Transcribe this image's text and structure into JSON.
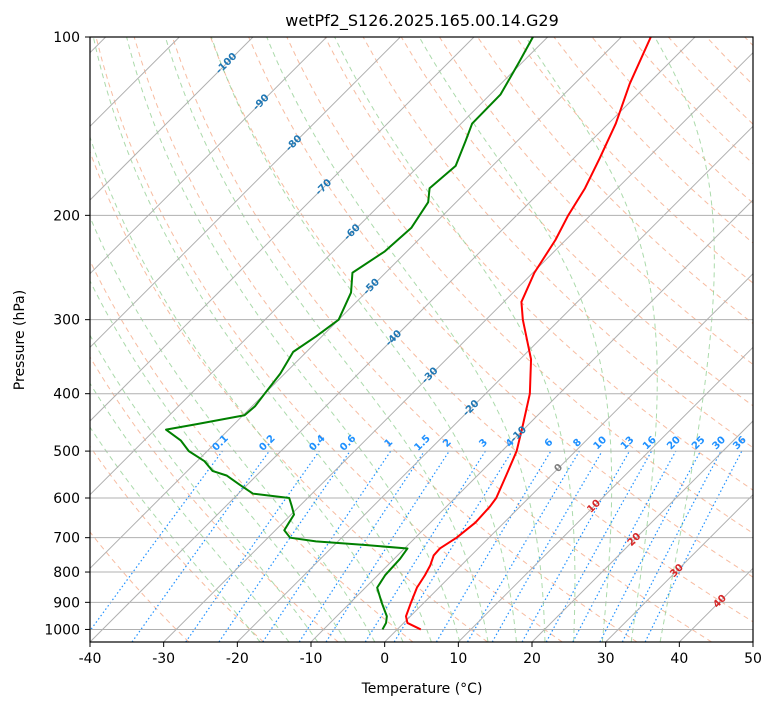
{
  "chart_data": {
    "type": "skew-t",
    "title": "wetPf2_S126.2025.165.00.14.G29",
    "xlabel": "Temperature (°C)",
    "ylabel": "Pressure (hPa)",
    "xlim": [
      -40,
      50
    ],
    "ylim": [
      1050,
      100
    ],
    "y_scale": "log",
    "grid": true,
    "x_ticks": [
      "-40",
      "-30",
      "-20",
      "-10",
      "0",
      "10",
      "20",
      "30",
      "40",
      "50"
    ],
    "x_tick_values": [
      -40,
      -30,
      -20,
      -10,
      0,
      10,
      20,
      30,
      40,
      50
    ],
    "y_ticks": [
      "100",
      "200",
      "300",
      "400",
      "500",
      "600",
      "700",
      "800",
      "900",
      "1000"
    ],
    "y_tick_values": [
      100,
      200,
      300,
      400,
      500,
      600,
      700,
      800,
      900,
      1000
    ],
    "series": [
      {
        "role": "temperature",
        "color": "#ff0000",
        "points": [
          [
            1000,
            3.2
          ],
          [
            975,
            0.5
          ],
          [
            950,
            -0.6
          ],
          [
            900,
            -1.8
          ],
          [
            850,
            -3.0
          ],
          [
            810,
            -3.6
          ],
          [
            780,
            -4.2
          ],
          [
            750,
            -5.1
          ],
          [
            730,
            -5.2
          ],
          [
            700,
            -4.4
          ],
          [
            660,
            -3.9
          ],
          [
            620,
            -4.1
          ],
          [
            600,
            -4.4
          ],
          [
            550,
            -6.1
          ],
          [
            500,
            -8.0
          ],
          [
            450,
            -10.8
          ],
          [
            400,
            -14.0
          ],
          [
            350,
            -18.5
          ],
          [
            300,
            -25.0
          ],
          [
            280,
            -27.6
          ],
          [
            250,
            -29.8
          ],
          [
            220,
            -31.4
          ],
          [
            200,
            -33.0
          ],
          [
            180,
            -34.4
          ],
          [
            160,
            -36.5
          ],
          [
            140,
            -39.0
          ],
          [
            120,
            -42.5
          ],
          [
            100,
            -46.0
          ]
        ]
      },
      {
        "role": "dewpoint",
        "color": "#008000",
        "points": [
          [
            1000,
            -2.0
          ],
          [
            975,
            -2.4
          ],
          [
            950,
            -3.2
          ],
          [
            900,
            -5.8
          ],
          [
            850,
            -8.4
          ],
          [
            810,
            -9.0
          ],
          [
            760,
            -9.2
          ],
          [
            730,
            -9.6
          ],
          [
            720,
            -16.0
          ],
          [
            710,
            -23.0
          ],
          [
            700,
            -27.0
          ],
          [
            680,
            -28.8
          ],
          [
            660,
            -29.2
          ],
          [
            640,
            -29.6
          ],
          [
            620,
            -31.0
          ],
          [
            600,
            -32.5
          ],
          [
            590,
            -38.0
          ],
          [
            570,
            -41.0
          ],
          [
            550,
            -44.0
          ],
          [
            540,
            -46.6
          ],
          [
            520,
            -49.0
          ],
          [
            500,
            -52.5
          ],
          [
            480,
            -55.0
          ],
          [
            460,
            -58.5
          ],
          [
            450,
            -55.0
          ],
          [
            435,
            -49.8
          ],
          [
            420,
            -49.6
          ],
          [
            400,
            -50.0
          ],
          [
            370,
            -50.6
          ],
          [
            340,
            -51.8
          ],
          [
            320,
            -50.8
          ],
          [
            300,
            -50.0
          ],
          [
            270,
            -52.0
          ],
          [
            250,
            -54.5
          ],
          [
            230,
            -53.0
          ],
          [
            210,
            -52.6
          ],
          [
            190,
            -53.8
          ],
          [
            180,
            -55.5
          ],
          [
            165,
            -55.0
          ],
          [
            150,
            -57.0
          ],
          [
            140,
            -58.5
          ],
          [
            125,
            -58.6
          ],
          [
            110,
            -60.5
          ],
          [
            100,
            -62.0
          ]
        ]
      }
    ],
    "reference_lines": {
      "isotherms": "solid gray, skewed",
      "dry_adiabats": "dashed light red",
      "moist_adiabats": "dashed light green",
      "mixing_ratios": "dotted blue"
    },
    "annotations": {
      "mixing_ratio_labels": [
        "0.1",
        "0.2",
        "0.4",
        "0.6",
        "1",
        "1.5",
        "2",
        "3",
        "4",
        "6",
        "8",
        "10",
        "13",
        "16",
        "20",
        "25",
        "30",
        "36"
      ],
      "blue_isotherm_labels": [
        "-100",
        "-90",
        "-80",
        "-70",
        "-60",
        "-50",
        "-40",
        "-30",
        "-20",
        "-10"
      ],
      "gray_isotherm_label": "0",
      "red_isotherm_labels": [
        "10",
        "20",
        "30",
        "40"
      ],
      "colors": {
        "mixing_ratio": "#1e90ff",
        "blue_isotherm": "#1f77b4",
        "red_isotherm": "#d62728",
        "gray_isotherm": "#7f7f7f"
      }
    }
  }
}
